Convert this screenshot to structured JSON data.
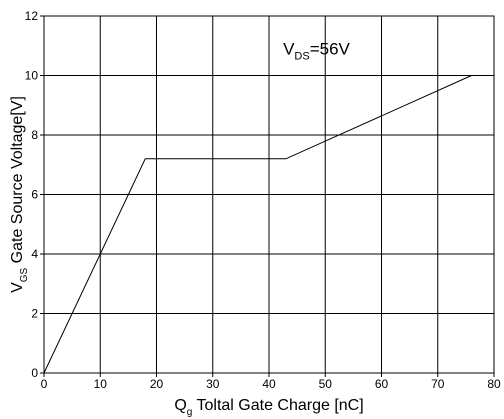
{
  "chart_data": {
    "type": "line",
    "title": "",
    "xlabel": {
      "main": "Q",
      "sub": "g",
      "rest": " Toltal Gate Charge [nC]"
    },
    "ylabel": {
      "main": "V",
      "sub": "GS",
      "rest": " Gate Source Voltage[V]"
    },
    "xlim": [
      0,
      80
    ],
    "ylim": [
      0,
      12
    ],
    "xticks": [
      0,
      10,
      20,
      30,
      40,
      50,
      60,
      70,
      80
    ],
    "yticks": [
      0,
      2,
      4,
      6,
      8,
      10,
      12
    ],
    "grid": true,
    "annotation": {
      "main": "V",
      "sub": "DS",
      "rest": "=56V"
    },
    "series": [
      {
        "x": [
          0,
          18,
          43,
          76
        ],
        "y": [
          0,
          7.2,
          7.2,
          10
        ]
      }
    ]
  }
}
